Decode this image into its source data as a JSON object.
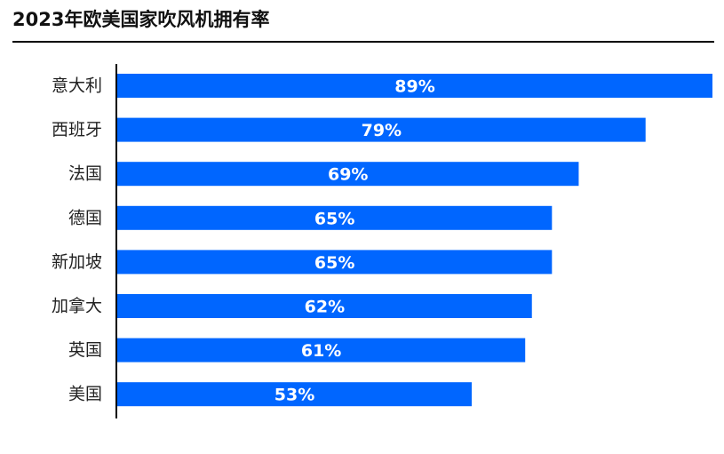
{
  "chart_data": {
    "type": "bar",
    "orientation": "horizontal",
    "title": "2023年欧美国家吹风机拥有率",
    "categories": [
      "意大利",
      "西班牙",
      "法国",
      "德国",
      "新加坡",
      "加拿大",
      "英国",
      "美国"
    ],
    "values": [
      89,
      79,
      69,
      65,
      65,
      62,
      61,
      53
    ],
    "value_labels": [
      "89%",
      "79%",
      "69%",
      "65%",
      "65%",
      "62%",
      "61%",
      "53%"
    ],
    "xlim": [
      0,
      89
    ],
    "grid": false,
    "legend": "none",
    "bar_color": "#0066ff"
  }
}
